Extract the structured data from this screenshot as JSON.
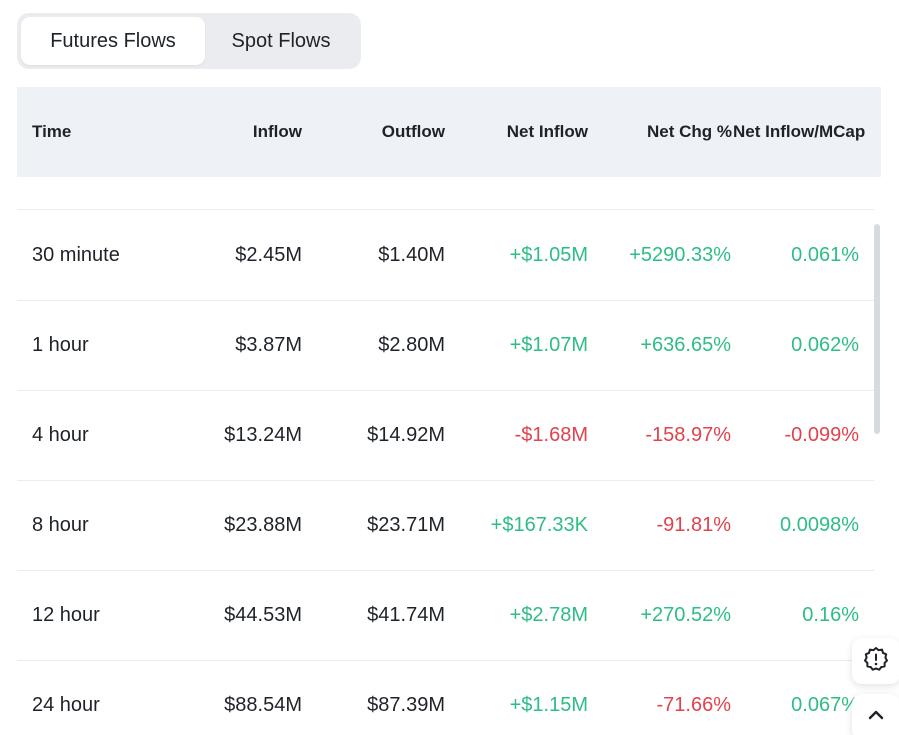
{
  "tabs": [
    {
      "label": "Futures Flows",
      "active": true
    },
    {
      "label": "Spot Flows",
      "active": false
    }
  ],
  "table": {
    "headers": {
      "time": "Time",
      "inflow": "Inflow",
      "outflow": "Outflow",
      "net_inflow": "Net Inflow",
      "net_chg": "Net Chg %",
      "net_inflow_mcap": "Net Inflow/MCap"
    },
    "rows": [
      {
        "time": "30 minute",
        "inflow": "$2.45M",
        "outflow": "$1.40M",
        "net_inflow": "+$1.05M",
        "net_chg": "+5290.33%",
        "net_inflow_mcap": "0.061%"
      },
      {
        "time": "1 hour",
        "inflow": "$3.87M",
        "outflow": "$2.80M",
        "net_inflow": "+$1.07M",
        "net_chg": "+636.65%",
        "net_inflow_mcap": "0.062%"
      },
      {
        "time": "4 hour",
        "inflow": "$13.24M",
        "outflow": "$14.92M",
        "net_inflow": "-$1.68M",
        "net_chg": "-158.97%",
        "net_inflow_mcap": "-0.099%"
      },
      {
        "time": "8 hour",
        "inflow": "$23.88M",
        "outflow": "$23.71M",
        "net_inflow": "+$167.33K",
        "net_chg": "-91.81%",
        "net_inflow_mcap": "0.0098%"
      },
      {
        "time": "12 hour",
        "inflow": "$44.53M",
        "outflow": "$41.74M",
        "net_inflow": "+$2.78M",
        "net_chg": "+270.52%",
        "net_inflow_mcap": "0.16%"
      },
      {
        "time": "24 hour",
        "inflow": "$88.54M",
        "outflow": "$87.39M",
        "net_inflow": "+$1.15M",
        "net_chg": "-71.66%",
        "net_inflow_mcap": "0.067%"
      }
    ]
  },
  "colors": {
    "positive": "#2ebd85",
    "negative": "#e0434d",
    "header_bg": "#eef1f5"
  },
  "icons": {
    "feedback": "alert-badge-icon",
    "scroll_top": "chevron-up-icon"
  }
}
